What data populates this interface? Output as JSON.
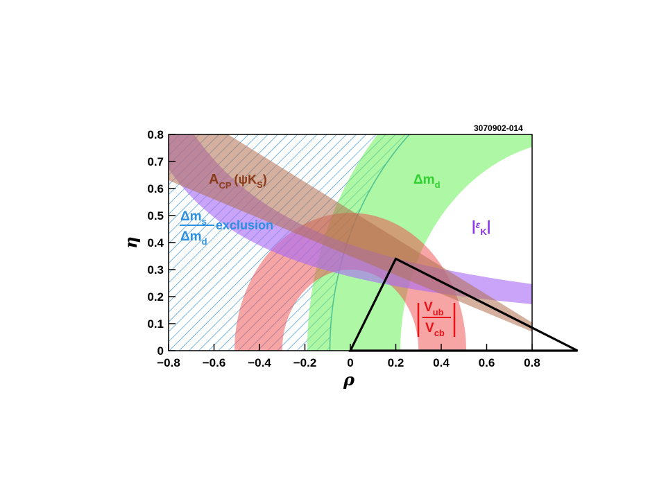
{
  "figure_id": "3070902-014",
  "colors": {
    "acp_band": "#b3704f",
    "dms_hatch": "#2f8fd8",
    "dmd_band": "#6cf05a",
    "epsk_band": "#a86cf5",
    "vub_band": "#f04a4a",
    "triangle": "#000000"
  },
  "chart_data": {
    "type": "area",
    "xlabel": "ρ",
    "ylabel": "η",
    "xlim": [
      -0.8,
      0.8
    ],
    "ylim": [
      0,
      0.8
    ],
    "x_ticks": [
      "−0.8",
      "−0.6",
      "−0.4",
      "−0.2",
      "0",
      "0.2",
      "0.4",
      "0.6",
      "0.8"
    ],
    "y_ticks": [
      "0",
      "0.1",
      "0.2",
      "0.3",
      "0.4",
      "0.5",
      "0.6",
      "0.7",
      "0.8"
    ],
    "grid": false,
    "annotations": {
      "acp": {
        "main": "A",
        "sub": "CP",
        "paren": "(ψK",
        "sub2": "S",
        "close": ")"
      },
      "dms_num": {
        "main": "Δm",
        "sub": "s"
      },
      "dms_den": {
        "main": "Δm",
        "sub": "d"
      },
      "dms_word": "exclusion",
      "dmd": {
        "main": "Δm",
        "sub": "d"
      },
      "epsk": {
        "open": "|",
        "main": "ε",
        "sub": "K",
        "close": "|"
      },
      "vub_num": {
        "main": "V",
        "sub": "ub"
      },
      "vub_den": {
        "main": "V",
        "sub": "cb"
      }
    },
    "constraints": [
      {
        "name": "A_CP(ψK_S)",
        "kind": "wedge",
        "apex": [
          1,
          0
        ],
        "slope_range": [
          -0.52,
          -0.35
        ]
      },
      {
        "name": "Δm_s/Δm_d exclusion",
        "kind": "hatched_region_outside_circle",
        "center": [
          1,
          0
        ],
        "radius": 1.09
      },
      {
        "name": "Δm_d",
        "kind": "annulus",
        "center": [
          1,
          0
        ],
        "r_inner": 0.78,
        "r_outer": 1.19
      },
      {
        "name": "|ε_K|",
        "kind": "hyperbolic_band",
        "rho_shift": 1.35,
        "k_range": [
          0.37,
          0.53
        ]
      },
      {
        "name": "|V_ub/V_cb|",
        "kind": "annulus",
        "center": [
          0,
          0
        ],
        "r_inner": 0.3,
        "r_outer": 0.51
      }
    ],
    "unitarity_triangle": {
      "vertices": [
        [
          0,
          0
        ],
        [
          1,
          0
        ],
        [
          0.2,
          0.34
        ]
      ]
    }
  }
}
